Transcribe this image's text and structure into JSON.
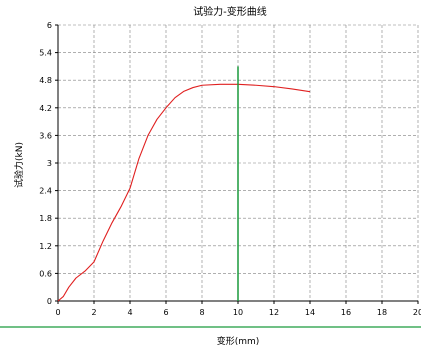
{
  "chart_data": {
    "type": "line",
    "title": "试验力-变形曲线",
    "xlabel": "变形(mm)",
    "ylabel": "试验力(kN)",
    "xlim": [
      0,
      20
    ],
    "ylim": [
      0,
      6
    ],
    "x_ticks": [
      "0",
      "2",
      "4",
      "6",
      "8",
      "10",
      "12",
      "14",
      "16",
      "18",
      "20"
    ],
    "y_ticks": [
      "0",
      "0.6",
      "1.2",
      "1.8",
      "2.4",
      "3",
      "3.6",
      "4.2",
      "4.8",
      "5.4",
      "6"
    ],
    "grid": true,
    "series": [
      {
        "color": "#e02020",
        "x": [
          0,
          0.3,
          0.6,
          1.0,
          1.5,
          2.0,
          2.5,
          3.0,
          3.5,
          4.0,
          4.5,
          5.0,
          5.5,
          6.0,
          6.5,
          7.0,
          7.5,
          8.0,
          9.0,
          10.0,
          11.0,
          12.0,
          13.0,
          14.0
        ],
        "y": [
          0,
          0.1,
          0.3,
          0.5,
          0.65,
          0.85,
          1.3,
          1.7,
          2.05,
          2.45,
          3.1,
          3.6,
          3.95,
          4.2,
          4.42,
          4.56,
          4.64,
          4.69,
          4.71,
          4.71,
          4.69,
          4.66,
          4.61,
          4.55
        ]
      }
    ],
    "marker_line": {
      "color": "#1a9a3c",
      "x": 10,
      "y_top": 5.1
    },
    "colors": {
      "axis": "#000000",
      "grid": "#808080",
      "separator": "#1a9a3c"
    }
  }
}
